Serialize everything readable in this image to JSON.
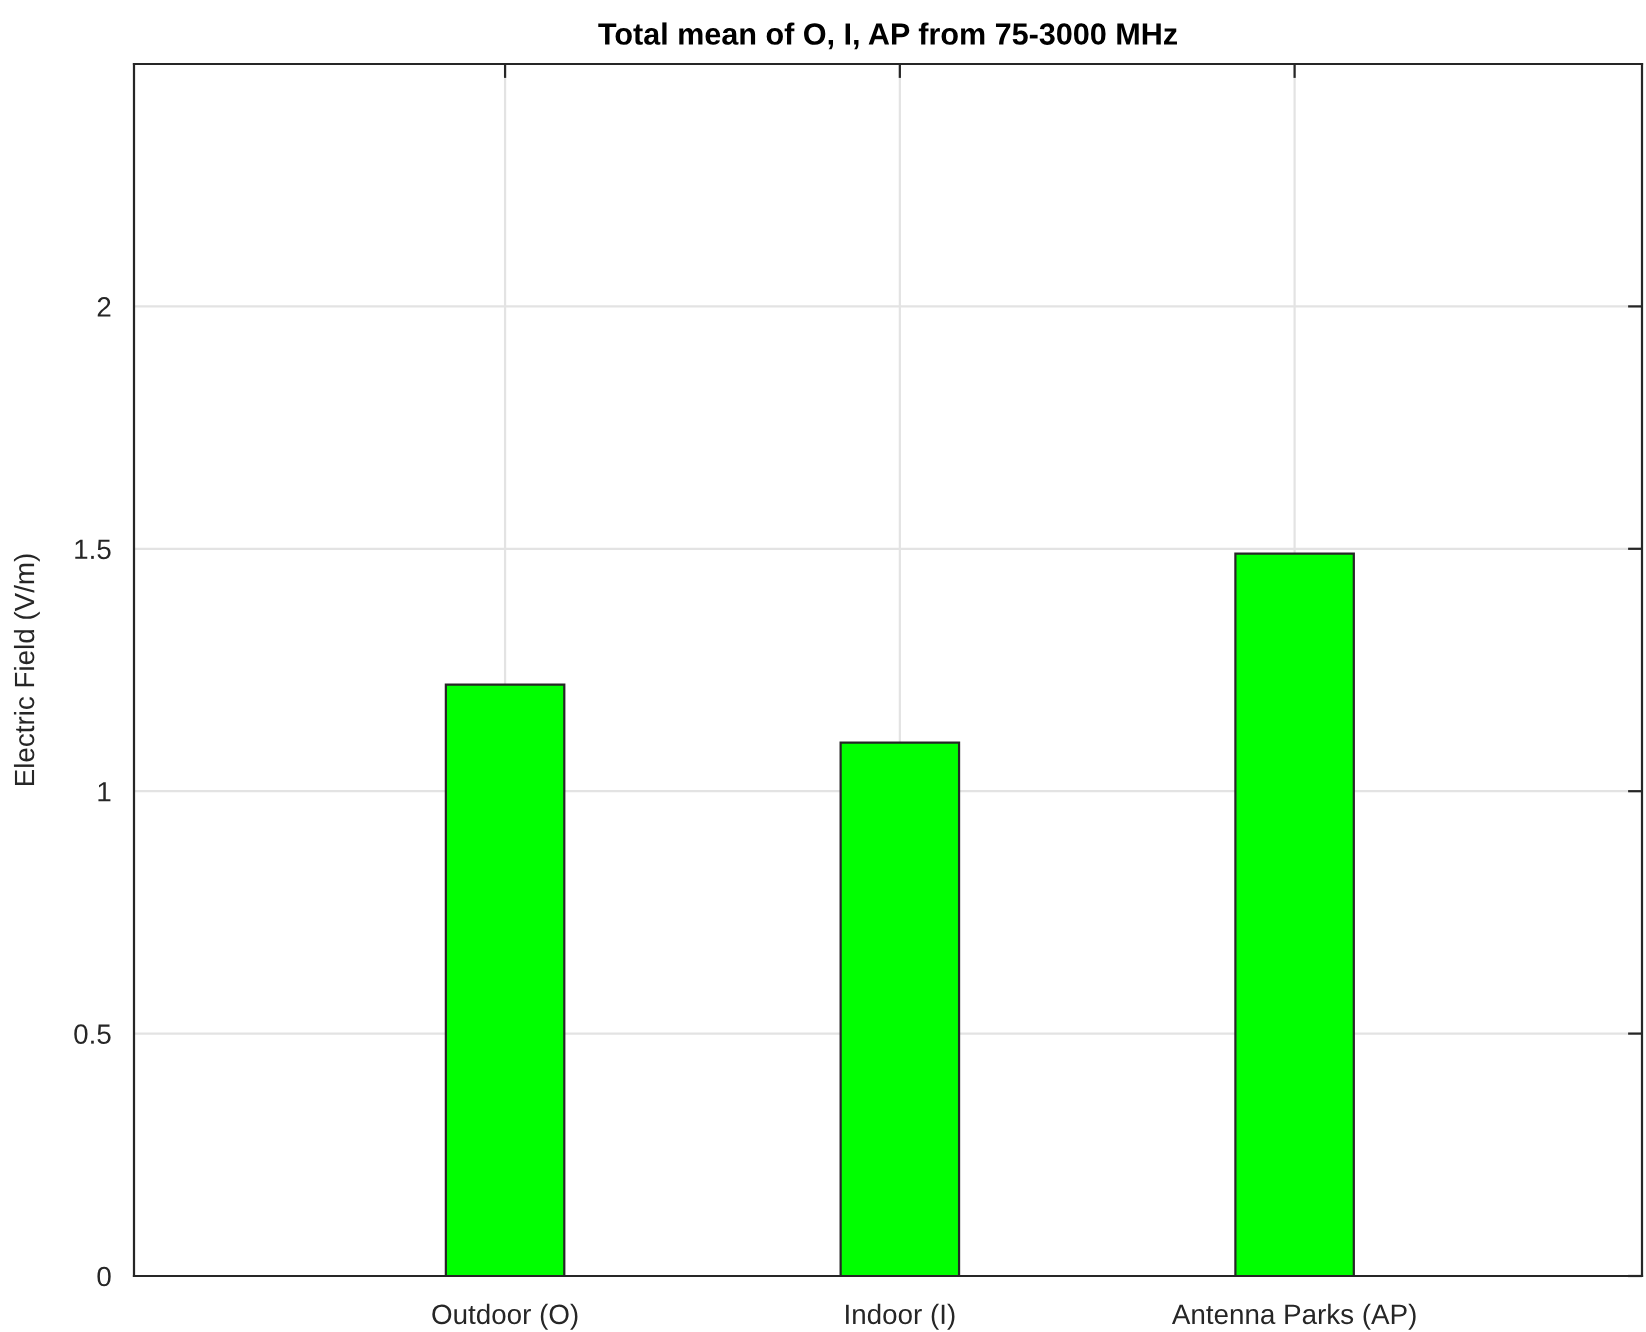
{
  "chart_data": {
    "type": "bar",
    "title": "Total mean of O, I, AP from 75-3000 MHz",
    "ylabel": "Electric Field (V/m)",
    "categories": [
      "Outdoor (O)",
      "Indoor (I)",
      "Antenna Parks (AP)"
    ],
    "values": [
      1.22,
      1.1,
      1.49
    ],
    "color": "#00ff00",
    "ylim": [
      0,
      2.5
    ],
    "yticks": [
      0,
      0.5,
      1,
      1.5,
      2
    ],
    "grid": true
  }
}
